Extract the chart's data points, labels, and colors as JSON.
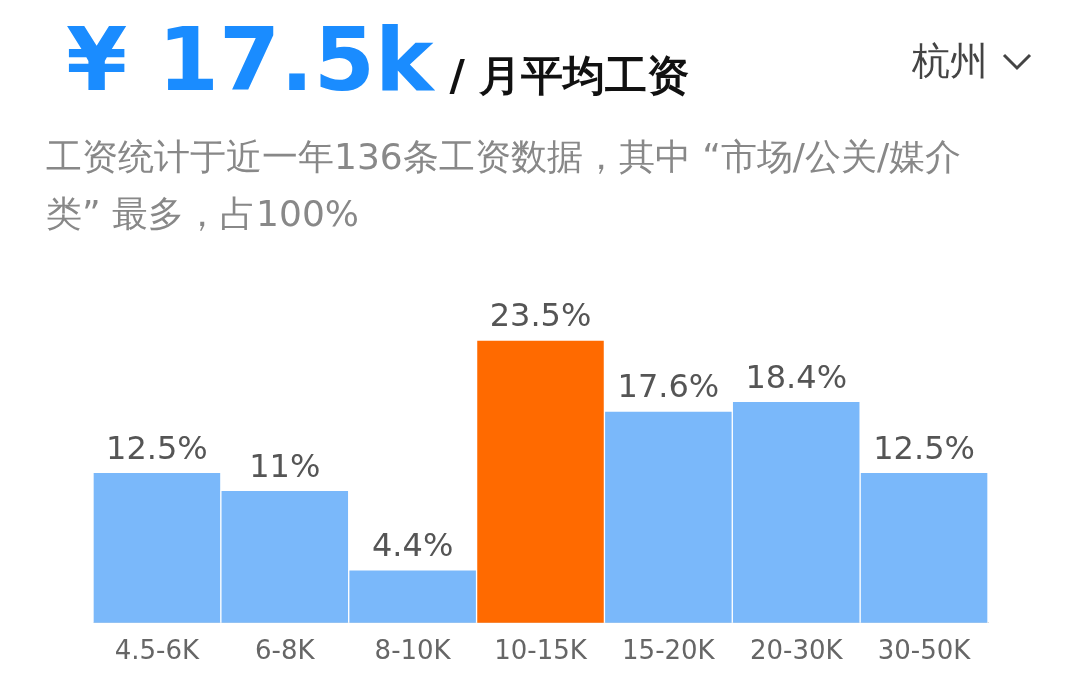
{
  "chart_data": {
    "type": "bar",
    "title": "¥ 17.5k",
    "subtitle": "/ 月平均工资",
    "annotations": [
      "杭州",
      "工资统计于近一年136条工资数据，其中 “市场/公关/媒介类” 最多，占100%"
    ],
    "categories": [
      "4.5-6K",
      "6-8K",
      "8-10K",
      "10-15K",
      "15-20K",
      "20-30K",
      "30-50K"
    ],
    "values": [
      12.5,
      11,
      4.4,
      23.5,
      17.6,
      18.4,
      12.5
    ],
    "value_labels": [
      "12.5%",
      "11%",
      "4.4%",
      "23.5%",
      "17.6%",
      "18.4%",
      "12.5%"
    ],
    "colors": [
      "#7ab8fa",
      "#7ab8fa",
      "#7ab8fa",
      "#ff6a00",
      "#7ab8fa",
      "#7ab8fa",
      "#7ab8fa"
    ],
    "grid": false,
    "legend": false
  }
}
